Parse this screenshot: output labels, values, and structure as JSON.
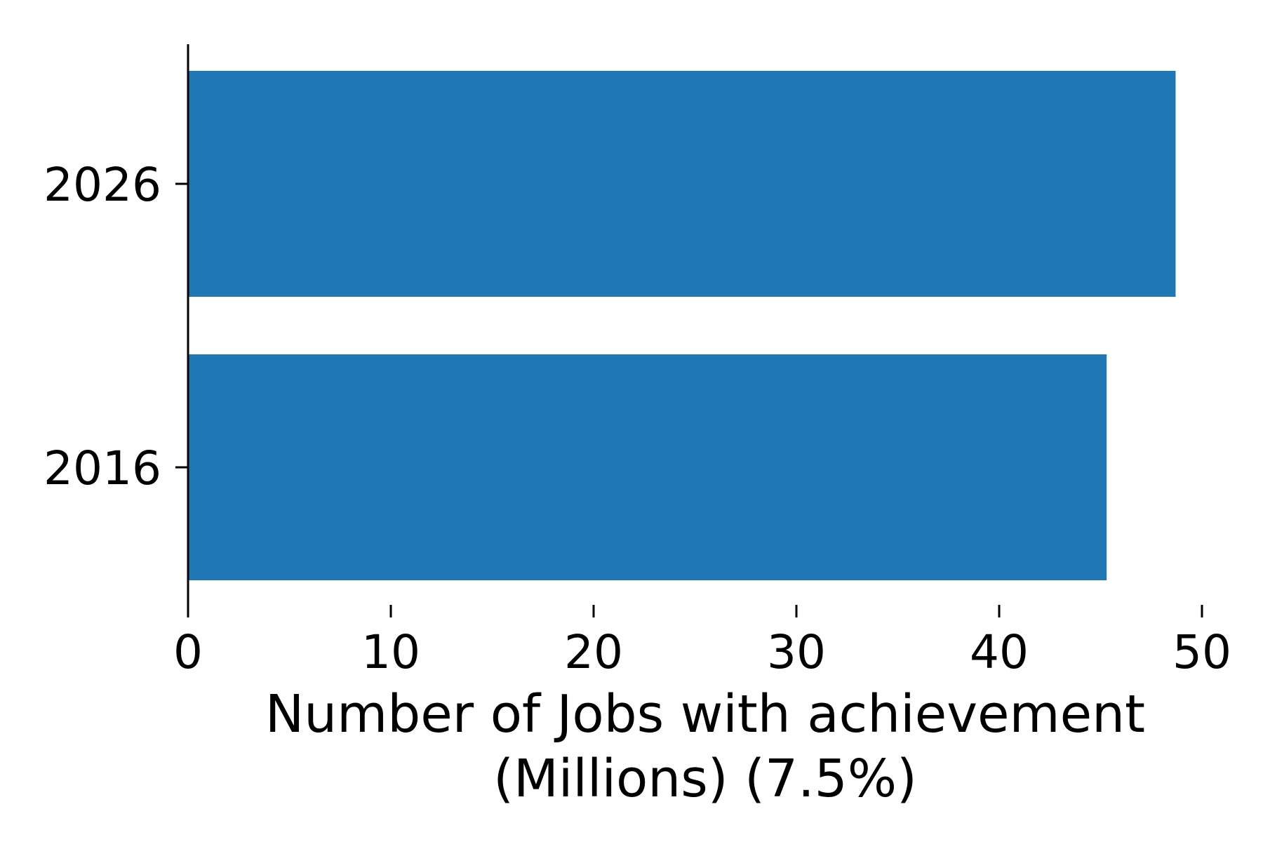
{
  "chart_data": {
    "type": "bar",
    "orientation": "horizontal",
    "categories": [
      "2016",
      "2026"
    ],
    "values": [
      45.3,
      48.7
    ],
    "xlabel_line1": "Number of Jobs with achievement",
    "xlabel_line2": "(Millions) (7.5%)",
    "ylabel": "",
    "xlim": [
      0,
      50
    ],
    "xticks": [
      "0",
      "10",
      "20",
      "30",
      "40",
      "50"
    ],
    "grid": false,
    "bar_color": "#1f77b4"
  }
}
